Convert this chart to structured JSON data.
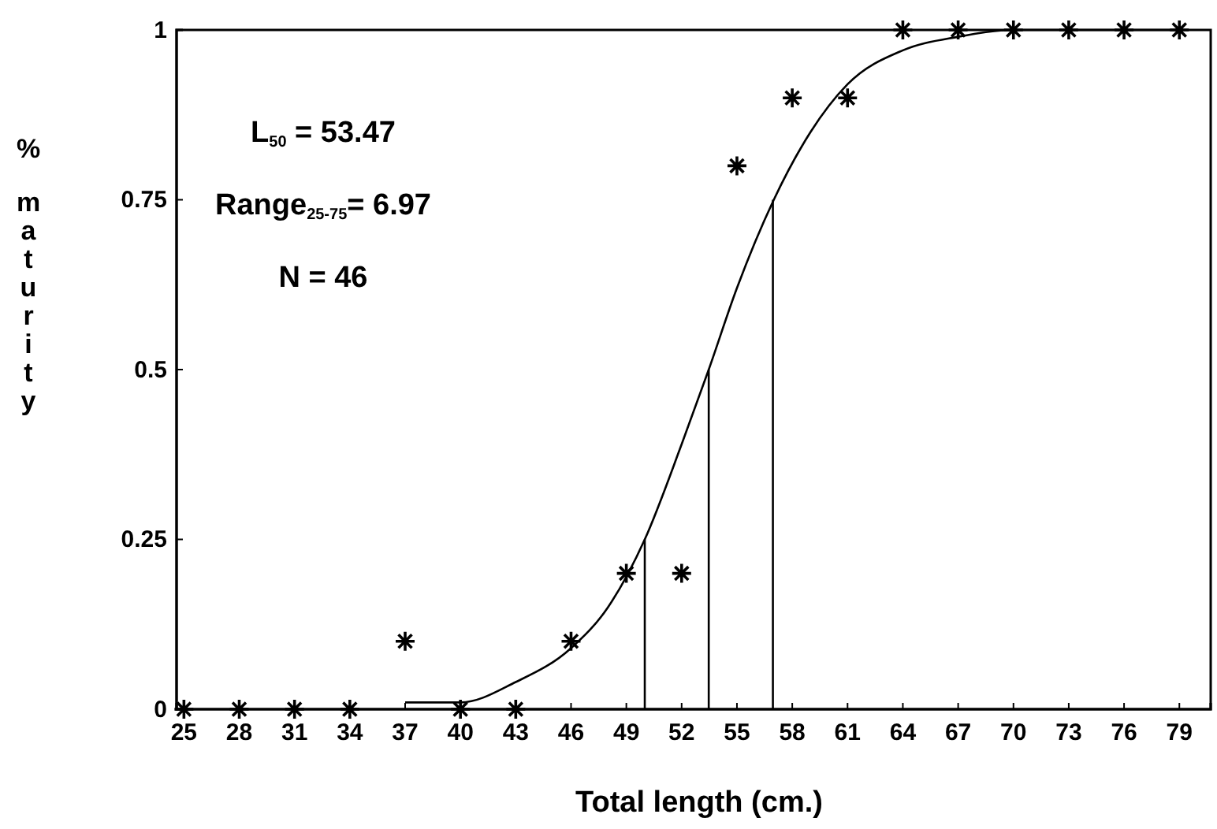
{
  "chart_data": {
    "type": "scatter",
    "xlabel": "Total length (cm.)",
    "ylabel": "% maturity",
    "xlim": [
      24.6,
      80.7
    ],
    "ylim": [
      0,
      1
    ],
    "xticks": [
      25,
      28,
      31,
      34,
      37,
      40,
      43,
      46,
      49,
      52,
      55,
      58,
      61,
      64,
      67,
      70,
      73,
      76,
      79
    ],
    "yticks": [
      0,
      0.25,
      0.5,
      0.75,
      1
    ],
    "grid": false,
    "series": [
      {
        "type": "scatter",
        "marker": "cross",
        "color": "#000000",
        "x": [
          25,
          28,
          31,
          34,
          37,
          40,
          43,
          46,
          49,
          52,
          55,
          58,
          61,
          64,
          67,
          70,
          73,
          76,
          79
        ],
        "values": [
          0,
          0,
          0,
          0,
          0.1,
          0,
          0,
          0.1,
          0.2,
          0.2,
          0.8,
          0.9,
          0.9,
          1,
          1,
          1,
          1,
          1,
          1
        ]
      },
      {
        "type": "line",
        "marker": "none",
        "line_style": "solid",
        "color": "#000000",
        "x": [
          37,
          40,
          43,
          46,
          48,
          50,
          52,
          53.47,
          55,
          57,
          59,
          61,
          64,
          67,
          70,
          74,
          79
        ],
        "values": [
          0.01,
          0.01,
          0.04,
          0.09,
          0.15,
          0.25,
          0.39,
          0.5,
          0.62,
          0.75,
          0.85,
          0.92,
          0.97,
          0.99,
          1,
          1,
          1
        ]
      },
      {
        "type": "line",
        "marker": "none",
        "line_style": "solid",
        "color": "#000000",
        "x": [
          50,
          50
        ],
        "values": [
          0,
          0.25
        ]
      },
      {
        "type": "line",
        "marker": "none",
        "line_style": "solid",
        "color": "#000000",
        "x": [
          53.47,
          53.47
        ],
        "values": [
          0,
          0.5
        ]
      },
      {
        "type": "line",
        "marker": "none",
        "line_style": "solid",
        "color": "#000000",
        "x": [
          56.95,
          56.95
        ],
        "values": [
          0,
          0.75
        ]
      }
    ],
    "annotations": [
      "L$_{50}$ = 53.47",
      "Range$_{25-75}$= 6.97",
      "N = 46"
    ]
  }
}
